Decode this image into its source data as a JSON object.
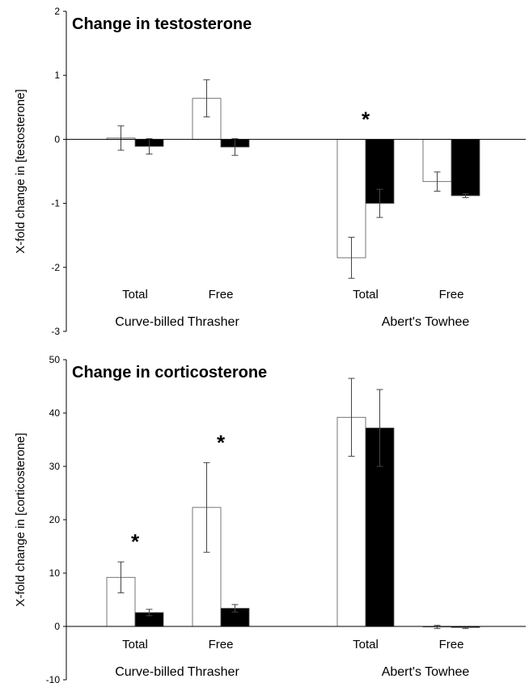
{
  "chart_data": [
    {
      "type": "bar",
      "title": "Change in testosterone",
      "ylabel": "X-fold change in [testosterone]",
      "ylim": [
        -3,
        2
      ],
      "yticks": [
        -3,
        -2,
        -1,
        0,
        1,
        2
      ],
      "groups": [
        "Curve-billed Thrasher",
        "Abert's Towhee"
      ],
      "categories": [
        "Total",
        "Free",
        "Total",
        "Free"
      ],
      "series": [
        {
          "values": [
            0.02,
            0.64,
            -1.85,
            -0.66
          ],
          "errors": [
            0.19,
            0.29,
            0.32,
            0.15
          ],
          "color": "#ffffff"
        },
        {
          "values": [
            -0.11,
            -0.12,
            -1.0,
            -0.88
          ],
          "errors": [
            0.12,
            0.13,
            0.22,
            0.03
          ],
          "color": "#000000"
        }
      ],
      "significance": [
        false,
        false,
        true,
        false
      ],
      "significance_mark": "*"
    },
    {
      "type": "bar",
      "title": "Change in corticosterone",
      "ylabel": "X-fold change in [corticosterone]",
      "ylim": [
        -10,
        50
      ],
      "yticks": [
        -10,
        0,
        10,
        20,
        30,
        40,
        50
      ],
      "groups": [
        "Curve-billed Thrasher",
        "Abert's Towhee"
      ],
      "categories": [
        "Total",
        "Free",
        "Total",
        "Free"
      ],
      "series": [
        {
          "values": [
            9.2,
            22.3,
            39.2,
            -0.1
          ],
          "errors": [
            2.9,
            8.4,
            7.3,
            0.3
          ],
          "color": "#ffffff"
        },
        {
          "values": [
            2.6,
            3.4,
            37.2,
            -0.2
          ],
          "errors": [
            0.6,
            0.7,
            7.2,
            0.2
          ],
          "color": "#000000"
        }
      ],
      "significance": [
        true,
        true,
        false,
        false
      ],
      "significance_mark": "*"
    }
  ]
}
